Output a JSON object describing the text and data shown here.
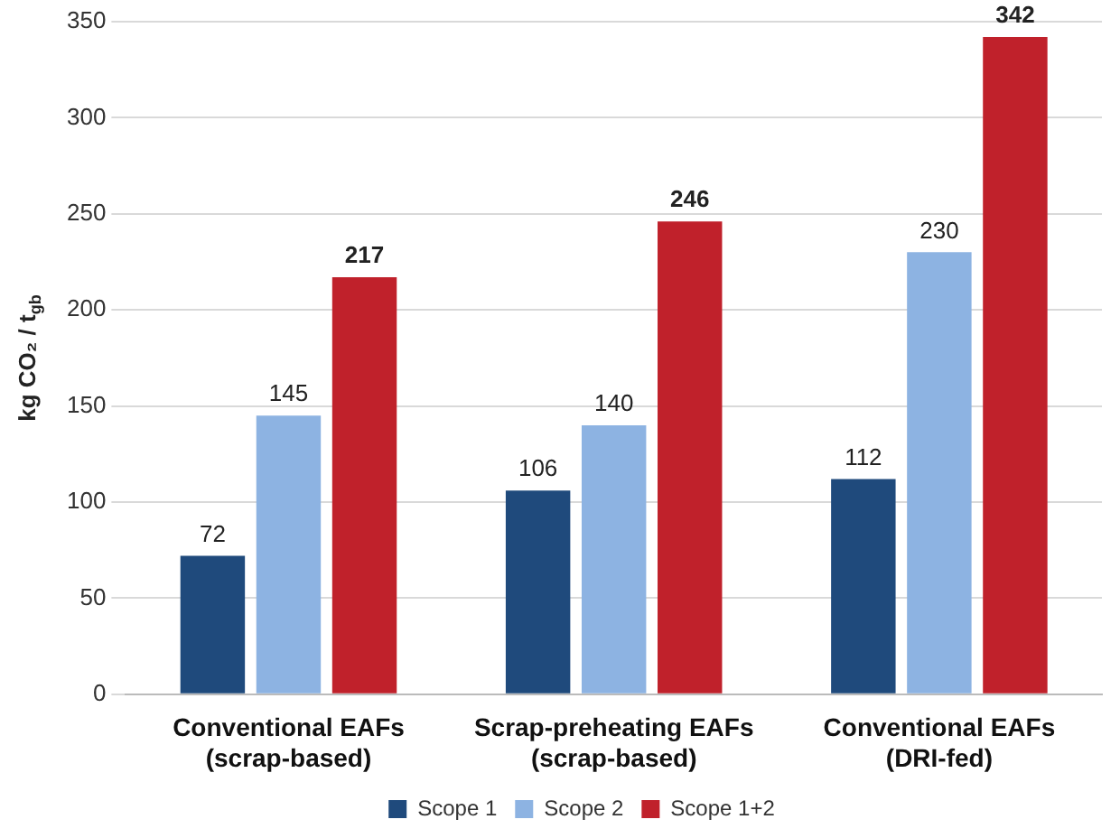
{
  "chart_data": {
    "type": "bar",
    "ylabel": "kg CO₂ / t$_{gb}$",
    "categories": [
      "Conventional EAFs\n(scrap-based)",
      "Scrap-preheating EAFs\n(scrap-based)",
      "Conventional EAFs\n(DRI-fed)"
    ],
    "series": [
      {
        "name": "Scope 1",
        "color": "#1f4a7c",
        "values": [
          72,
          106,
          112
        ]
      },
      {
        "name": "Scope 2",
        "color": "#8db3e2",
        "values": [
          145,
          140,
          230
        ]
      },
      {
        "name": "Scope 1+2",
        "color": "#c0212b",
        "values": [
          217,
          246,
          342
        ]
      }
    ],
    "ylim": [
      0,
      350
    ],
    "yticks": [
      0,
      50,
      100,
      150,
      200,
      250,
      300,
      350
    ],
    "grid": "y",
    "legend": "bottom",
    "data_labels": true
  }
}
